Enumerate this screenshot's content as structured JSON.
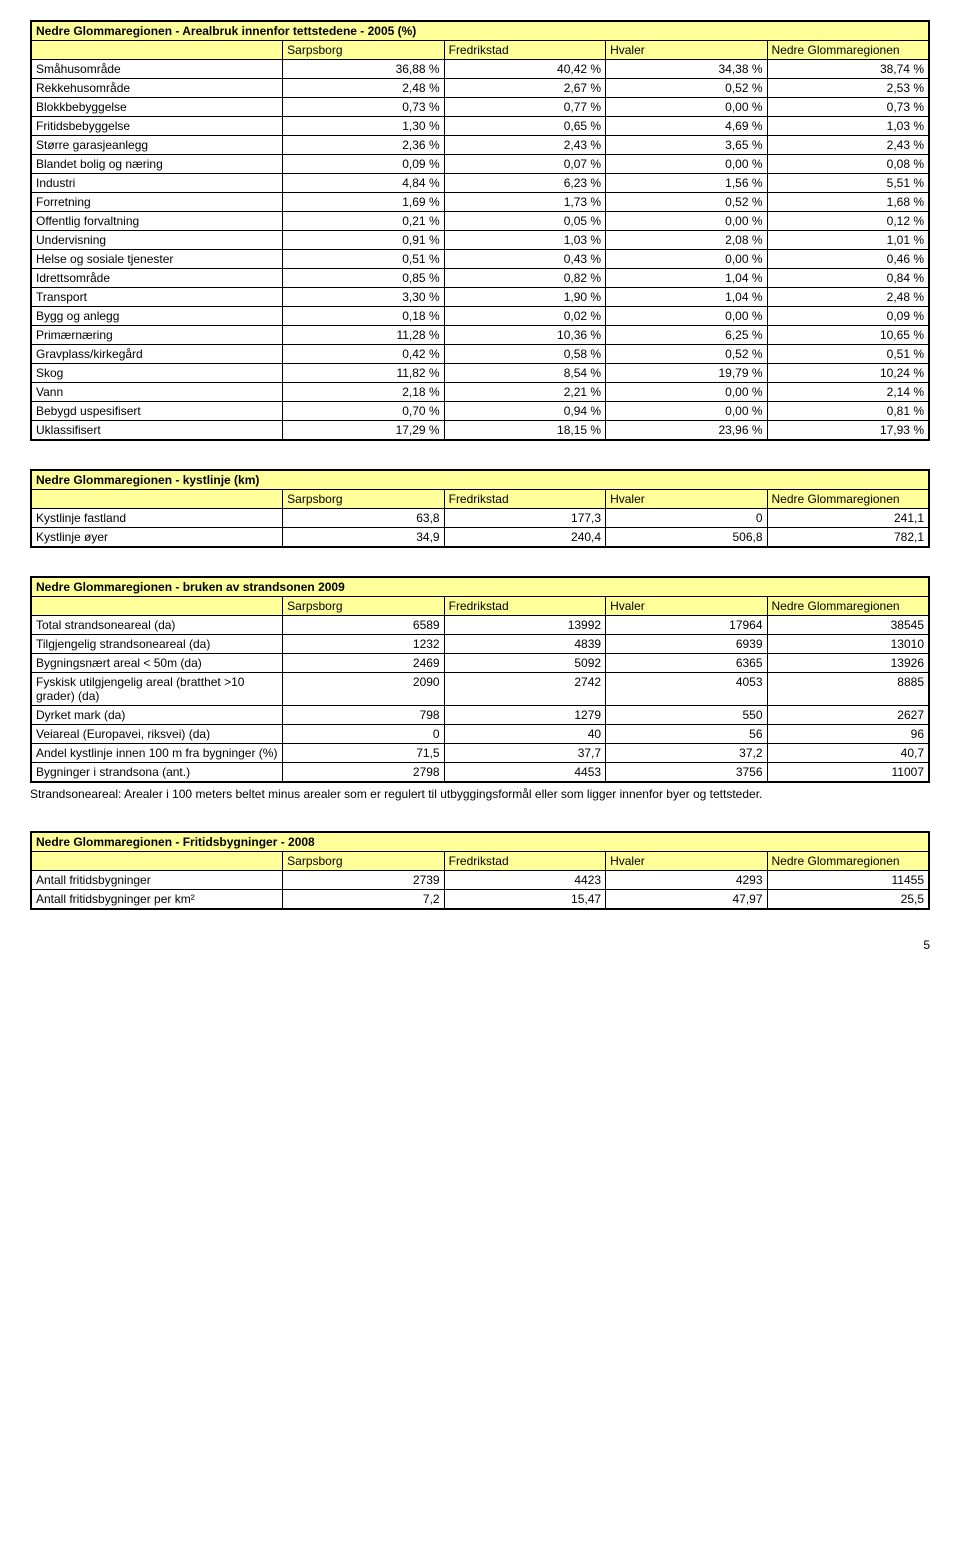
{
  "colors": {
    "header_bg": "#ffff99",
    "border": "#000000",
    "page_bg": "#ffffff"
  },
  "typography": {
    "family": "Arial",
    "base_size_pt": 9
  },
  "col_widths": {
    "label": "28%",
    "data": "18%"
  },
  "table1": {
    "title": "Nedre Glommaregionen - Arealbruk innenfor tettstedene - 2005 (%)",
    "columns": [
      "Sarpsborg",
      "Fredrikstad",
      "Hvaler",
      "Nedre Glommaregionen"
    ],
    "rows": [
      [
        "Småhusområde",
        "36,88 %",
        "40,42 %",
        "34,38 %",
        "38,74 %"
      ],
      [
        "Rekkehusområde",
        "2,48 %",
        "2,67 %",
        "0,52 %",
        "2,53 %"
      ],
      [
        "Blokkbebyggelse",
        "0,73 %",
        "0,77 %",
        "0,00 %",
        "0,73 %"
      ],
      [
        "Fritidsbebyggelse",
        "1,30 %",
        "0,65 %",
        "4,69 %",
        "1,03 %"
      ],
      [
        "Større garasjeanlegg",
        "2,36 %",
        "2,43 %",
        "3,65 %",
        "2,43 %"
      ],
      [
        "Blandet bolig og næring",
        "0,09 %",
        "0,07 %",
        "0,00 %",
        "0,08 %"
      ],
      [
        "Industri",
        "4,84 %",
        "6,23 %",
        "1,56 %",
        "5,51 %"
      ],
      [
        "Forretning",
        "1,69 %",
        "1,73 %",
        "0,52 %",
        "1,68 %"
      ],
      [
        "Offentlig forvaltning",
        "0,21 %",
        "0,05 %",
        "0,00 %",
        "0,12 %"
      ],
      [
        "Undervisning",
        "0,91 %",
        "1,03 %",
        "2,08 %",
        "1,01 %"
      ],
      [
        "Helse og sosiale tjenester",
        "0,51 %",
        "0,43 %",
        "0,00 %",
        "0,46 %"
      ],
      [
        "Idrettsområde",
        "0,85 %",
        "0,82 %",
        "1,04 %",
        "0,84 %"
      ],
      [
        "Transport",
        "3,30 %",
        "1,90 %",
        "1,04 %",
        "2,48 %"
      ],
      [
        "Bygg og anlegg",
        "0,18 %",
        "0,02 %",
        "0,00 %",
        "0,09 %"
      ],
      [
        "Primærnæring",
        "11,28 %",
        "10,36 %",
        "6,25 %",
        "10,65 %"
      ],
      [
        "Gravplass/kirkegård",
        "0,42 %",
        "0,58 %",
        "0,52 %",
        "0,51 %"
      ],
      [
        "Skog",
        "11,82 %",
        "8,54 %",
        "19,79 %",
        "10,24 %"
      ],
      [
        "Vann",
        "2,18 %",
        "2,21 %",
        "0,00 %",
        "2,14 %"
      ],
      [
        "Bebygd uspesifisert",
        "0,70 %",
        "0,94 %",
        "0,00 %",
        "0,81 %"
      ],
      [
        "Uklassifisert",
        "17,29 %",
        "18,15 %",
        "23,96 %",
        "17,93 %"
      ]
    ]
  },
  "table2": {
    "title": "Nedre Glommaregionen - kystlinje (km)",
    "columns": [
      "Sarpsborg",
      "Fredrikstad",
      "Hvaler",
      "Nedre Glommaregionen"
    ],
    "rows": [
      [
        "Kystlinje fastland",
        "63,8",
        "177,3",
        "0",
        "241,1"
      ],
      [
        "Kystlinje øyer",
        "34,9",
        "240,4",
        "506,8",
        "782,1"
      ]
    ]
  },
  "table3": {
    "title": "Nedre Glommaregionen - bruken av strandsonen  2009",
    "columns": [
      "Sarpsborg",
      "Fredrikstad",
      "Hvaler",
      "Nedre Glommaregionen"
    ],
    "rows": [
      [
        "Total strandsoneareal (da)",
        "6589",
        "13992",
        "17964",
        "38545"
      ],
      [
        "Tilgjengelig strandsoneareal (da)",
        "1232",
        "4839",
        "6939",
        "13010"
      ],
      [
        "Bygningsnært areal < 50m (da)",
        "2469",
        "5092",
        "6365",
        "13926"
      ],
      [
        "Fyskisk utilgjengelig areal (bratthet >10 grader) (da)",
        "2090",
        "2742",
        "4053",
        "8885"
      ],
      [
        "Dyrket mark (da)",
        "798",
        "1279",
        "550",
        "2627"
      ],
      [
        "Veiareal (Europavei, riksvei) (da)",
        "0",
        "40",
        "56",
        "96"
      ],
      [
        "Andel kystlinje innen 100 m fra bygninger (%)",
        "71,5",
        "37,7",
        "37,2",
        "40,7"
      ],
      [
        "Bygninger i strandsona (ant.)",
        "2798",
        "4453",
        "3756",
        "11007"
      ]
    ],
    "footnote": "Strandsoneareal: Arealer i 100 meters beltet minus arealer som er regulert til utbyggingsformål eller som ligger innenfor byer og tettsteder."
  },
  "table4": {
    "title": "Nedre Glommaregionen - Fritidsbygninger - 2008",
    "columns": [
      "Sarpsborg",
      "Fredrikstad",
      "Hvaler",
      "Nedre Glommaregionen"
    ],
    "rows": [
      [
        "Antall fritidsbygninger",
        "2739",
        "4423",
        "4293",
        "11455"
      ],
      [
        "Antall fritidsbygninger per km²",
        "7,2",
        "15,47",
        "47,97",
        "25,5"
      ]
    ]
  },
  "page_number": "5"
}
